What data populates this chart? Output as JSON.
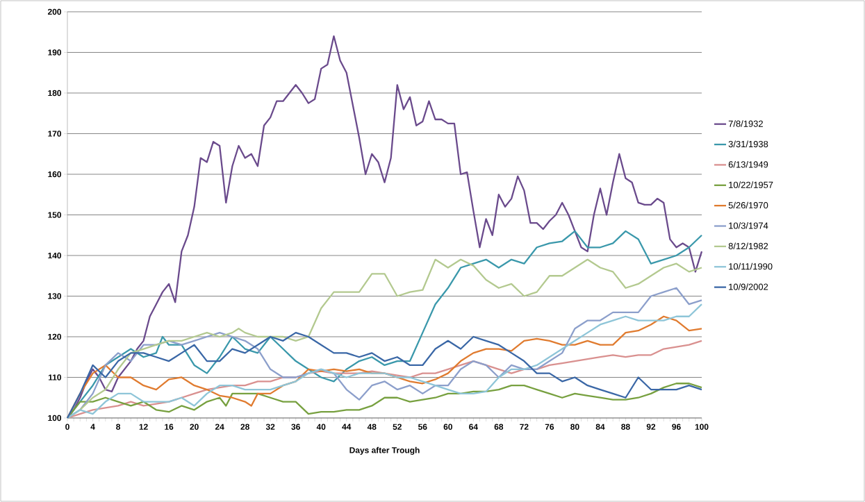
{
  "chart_data": {
    "type": "line",
    "xlabel": "Days after Trough",
    "xlim": [
      0,
      100
    ],
    "xticks": [
      0,
      4,
      8,
      12,
      16,
      20,
      24,
      28,
      32,
      36,
      40,
      44,
      48,
      52,
      56,
      60,
      64,
      68,
      72,
      76,
      80,
      84,
      88,
      92,
      96,
      100
    ],
    "ylim": [
      100,
      200
    ],
    "yticks": [
      100,
      110,
      120,
      130,
      140,
      150,
      160,
      170,
      180,
      190,
      200
    ],
    "grid": "y",
    "legend": "right",
    "marker": "none",
    "line_style": "solid",
    "series": [
      {
        "name": "7/8/1932",
        "color": "#6a4a8c",
        "x": [
          0,
          1,
          2,
          3,
          4,
          5,
          6,
          7,
          8,
          9,
          10,
          11,
          12,
          13,
          14,
          15,
          16,
          17,
          18,
          19,
          20,
          21,
          22,
          23,
          24,
          25,
          26,
          27,
          28,
          29,
          30,
          31,
          32,
          33,
          34,
          35,
          36,
          37,
          38,
          39,
          40,
          41,
          42,
          43,
          44,
          45,
          46,
          47,
          48,
          49,
          50,
          51,
          52,
          53,
          54,
          55,
          56,
          57,
          58,
          59,
          60,
          61,
          62,
          63,
          64,
          65,
          66,
          67,
          68,
          69,
          70,
          71,
          72,
          73,
          74,
          75,
          76,
          77,
          78,
          79,
          80,
          81,
          82,
          83,
          84,
          85,
          86,
          87,
          88,
          89,
          90,
          91,
          92,
          93,
          94,
          95,
          96,
          97,
          98,
          99,
          100
        ],
        "values": [
          100,
          102,
          105,
          109,
          112,
          110,
          107,
          106.5,
          110,
          112,
          114,
          117,
          119,
          125,
          128,
          131,
          133,
          128.5,
          141,
          145,
          152,
          164,
          163,
          168,
          167,
          153,
          162,
          167,
          164,
          165,
          162,
          172,
          174,
          178,
          178,
          180,
          182,
          180,
          177.5,
          178.5,
          186,
          187,
          194,
          188,
          185,
          177,
          169,
          160,
          165,
          163,
          158,
          164,
          182,
          176,
          179,
          172,
          173,
          178,
          173.5,
          173.5,
          172.5,
          172.5,
          160,
          160.5,
          151,
          142,
          149,
          145,
          155,
          152,
          154,
          159.5,
          156,
          148,
          148,
          146.5,
          148.5,
          150,
          153,
          150,
          146,
          142,
          141,
          150,
          156.5,
          150,
          158,
          165,
          159,
          158,
          153,
          152.5,
          152.5,
          154,
          153,
          144,
          142,
          143,
          142,
          136,
          141
        ]
      },
      {
        "name": "3/31/1938",
        "color": "#3a98ab",
        "x": [
          0,
          2,
          4,
          6,
          8,
          10,
          12,
          14,
          15,
          16,
          18,
          20,
          22,
          24,
          26,
          28,
          30,
          32,
          34,
          36,
          38,
          40,
          42,
          44,
          46,
          48,
          50,
          52,
          54,
          56,
          58,
          60,
          62,
          64,
          66,
          68,
          70,
          72,
          74,
          76,
          78,
          80,
          82,
          84,
          86,
          88,
          90,
          92,
          94,
          96,
          98,
          100
        ],
        "values": [
          100,
          104,
          108,
          113,
          115,
          117,
          115,
          116,
          120,
          118,
          118,
          113,
          111,
          115,
          120,
          117,
          116,
          120,
          117,
          114,
          112,
          110,
          109,
          112,
          114,
          115,
          113,
          114,
          114,
          121,
          128,
          132,
          137,
          138,
          139,
          137,
          139,
          138,
          142,
          143,
          143.5,
          146,
          142,
          142,
          143,
          146,
          144,
          138,
          139,
          140,
          142,
          145
        ]
      },
      {
        "name": "6/13/1949",
        "color": "#d9908f",
        "x": [
          0,
          2,
          4,
          6,
          8,
          10,
          12,
          14,
          16,
          18,
          20,
          22,
          24,
          26,
          28,
          30,
          32,
          34,
          36,
          38,
          40,
          42,
          44,
          46,
          48,
          50,
          52,
          54,
          56,
          58,
          60,
          62,
          64,
          66,
          68,
          70,
          72,
          74,
          76,
          78,
          80,
          82,
          84,
          86,
          88,
          90,
          92,
          94,
          96,
          98,
          100
        ],
        "values": [
          100,
          101,
          102,
          102.5,
          103,
          104,
          103,
          103.5,
          104,
          105,
          106,
          107,
          107.5,
          108,
          108,
          109,
          109,
          110,
          110,
          111,
          111.5,
          111,
          111,
          111,
          111.5,
          111,
          110.5,
          110,
          111,
          111,
          112,
          113,
          114,
          113,
          112,
          111,
          112,
          112,
          113,
          113.5,
          114,
          114.5,
          115,
          115.5,
          115,
          115.5,
          115.5,
          117,
          117.5,
          118,
          119
        ]
      },
      {
        "name": "10/22/1957",
        "color": "#77a03f",
        "x": [
          0,
          2,
          4,
          6,
          8,
          10,
          12,
          14,
          16,
          18,
          20,
          22,
          24,
          25,
          26,
          28,
          30,
          32,
          34,
          36,
          38,
          40,
          42,
          44,
          46,
          48,
          50,
          52,
          54,
          56,
          58,
          60,
          62,
          64,
          66,
          68,
          70,
          72,
          74,
          76,
          78,
          80,
          82,
          84,
          86,
          88,
          90,
          92,
          94,
          96,
          98,
          100
        ],
        "values": [
          100,
          104,
          104,
          105,
          104,
          103,
          104,
          102,
          101.5,
          103,
          102,
          104,
          105,
          103,
          106,
          106,
          106,
          105,
          104,
          104,
          101,
          101.5,
          101.5,
          102,
          102,
          103,
          105,
          105,
          104,
          104.5,
          105,
          106,
          106,
          106.5,
          106.5,
          107,
          108,
          108,
          107,
          106,
          105,
          106,
          105.5,
          105,
          104.5,
          104.5,
          105,
          106,
          107.5,
          108.5,
          108.5,
          107.5
        ]
      },
      {
        "name": "5/26/1970",
        "color": "#e07b2f",
        "x": [
          0,
          2,
          4,
          6,
          8,
          10,
          12,
          14,
          16,
          18,
          20,
          22,
          24,
          26,
          28,
          29,
          30,
          32,
          34,
          36,
          38,
          40,
          42,
          44,
          46,
          48,
          50,
          52,
          54,
          56,
          58,
          60,
          62,
          64,
          66,
          68,
          70,
          72,
          74,
          76,
          78,
          80,
          82,
          84,
          86,
          88,
          90,
          92,
          94,
          96,
          98,
          100
        ],
        "values": [
          100,
          106,
          111,
          113,
          110,
          110,
          108,
          107,
          109.5,
          110,
          108,
          107,
          105.5,
          105,
          104,
          103,
          106,
          106,
          108,
          109,
          112,
          111.5,
          112,
          111.5,
          112,
          111,
          111,
          110,
          109,
          108.5,
          109.5,
          111,
          114,
          116,
          117,
          117,
          116.5,
          119,
          119.5,
          119,
          118,
          118,
          119,
          118,
          118,
          121,
          121.5,
          123,
          125,
          124,
          121.5,
          122
        ]
      },
      {
        "name": "10/3/1974",
        "color": "#8c9fcb",
        "x": [
          0,
          2,
          4,
          6,
          8,
          10,
          12,
          14,
          16,
          18,
          20,
          22,
          24,
          26,
          28,
          30,
          32,
          34,
          36,
          38,
          40,
          42,
          44,
          46,
          48,
          50,
          52,
          54,
          56,
          58,
          60,
          62,
          64,
          66,
          68,
          70,
          72,
          74,
          76,
          78,
          80,
          82,
          84,
          86,
          88,
          90,
          92,
          94,
          96,
          98,
          100
        ],
        "values": [
          100,
          102,
          106,
          113,
          116,
          114,
          118,
          118,
          119,
          118,
          119,
          120,
          121,
          120,
          119,
          117,
          112,
          110,
          110,
          111,
          112,
          111,
          107,
          104.5,
          108,
          109,
          107,
          108,
          106,
          108,
          108,
          112,
          114,
          113,
          110,
          113,
          112,
          112,
          114,
          116,
          122,
          124,
          124,
          126,
          126,
          126,
          130,
          131,
          132,
          128,
          129
        ]
      },
      {
        "name": "8/12/1982",
        "color": "#b3c98f",
        "x": [
          0,
          2,
          4,
          6,
          8,
          10,
          12,
          14,
          16,
          18,
          20,
          22,
          24,
          26,
          27,
          28,
          30,
          32,
          34,
          36,
          38,
          40,
          42,
          44,
          46,
          48,
          50,
          52,
          54,
          56,
          58,
          60,
          62,
          64,
          66,
          68,
          70,
          72,
          74,
          76,
          78,
          80,
          82,
          84,
          86,
          88,
          90,
          92,
          94,
          96,
          98,
          100
        ],
        "values": [
          100,
          102,
          105,
          107,
          112,
          116,
          117,
          118,
          119,
          119,
          120,
          121,
          120,
          121,
          122,
          121,
          120,
          120,
          120,
          119,
          120,
          127,
          131,
          131,
          131,
          135.5,
          135.5,
          130,
          131,
          131.5,
          139,
          137,
          139,
          137.5,
          134,
          132,
          133,
          130,
          131,
          135,
          135,
          137,
          139,
          137,
          136,
          132,
          133,
          135,
          137,
          138,
          136,
          137
        ]
      },
      {
        "name": "10/11/1990",
        "color": "#8ec5d8",
        "x": [
          0,
          2,
          4,
          6,
          8,
          10,
          12,
          14,
          16,
          18,
          20,
          22,
          24,
          26,
          28,
          30,
          32,
          34,
          36,
          38,
          40,
          42,
          44,
          46,
          48,
          50,
          52,
          54,
          56,
          58,
          60,
          62,
          64,
          66,
          68,
          70,
          72,
          74,
          76,
          78,
          80,
          82,
          84,
          86,
          88,
          90,
          92,
          94,
          96,
          98,
          100
        ],
        "values": [
          100,
          102,
          101,
          104,
          106,
          106,
          104,
          104,
          104,
          105,
          103,
          106,
          108,
          108,
          107,
          107,
          107,
          108,
          109,
          111,
          112,
          111,
          110,
          111,
          111,
          111,
          110,
          110,
          109,
          108,
          107,
          106,
          106,
          106.5,
          110,
          112,
          112,
          113,
          115,
          117,
          119,
          121,
          123,
          124,
          125,
          124,
          124,
          124,
          125,
          125,
          128
        ]
      },
      {
        "name": "10/9/2002",
        "color": "#3a67a6",
        "x": [
          0,
          2,
          4,
          6,
          8,
          10,
          12,
          14,
          16,
          18,
          20,
          22,
          24,
          26,
          28,
          30,
          32,
          34,
          36,
          38,
          40,
          42,
          44,
          46,
          48,
          50,
          52,
          54,
          56,
          58,
          60,
          62,
          64,
          66,
          68,
          70,
          72,
          74,
          76,
          78,
          80,
          82,
          84,
          86,
          88,
          90,
          92,
          94,
          96,
          98,
          100
        ],
        "values": [
          100,
          106,
          113,
          110,
          114,
          116,
          116,
          115,
          114,
          116,
          118,
          114,
          114,
          117,
          116,
          118,
          120,
          119,
          121,
          120,
          118,
          116,
          116,
          115,
          116,
          114,
          115,
          113,
          113,
          117,
          119,
          117,
          120,
          119,
          118,
          116,
          114,
          111,
          111,
          109,
          110,
          108,
          107,
          106,
          105,
          110,
          107,
          107,
          107,
          108,
          107
        ]
      }
    ]
  }
}
